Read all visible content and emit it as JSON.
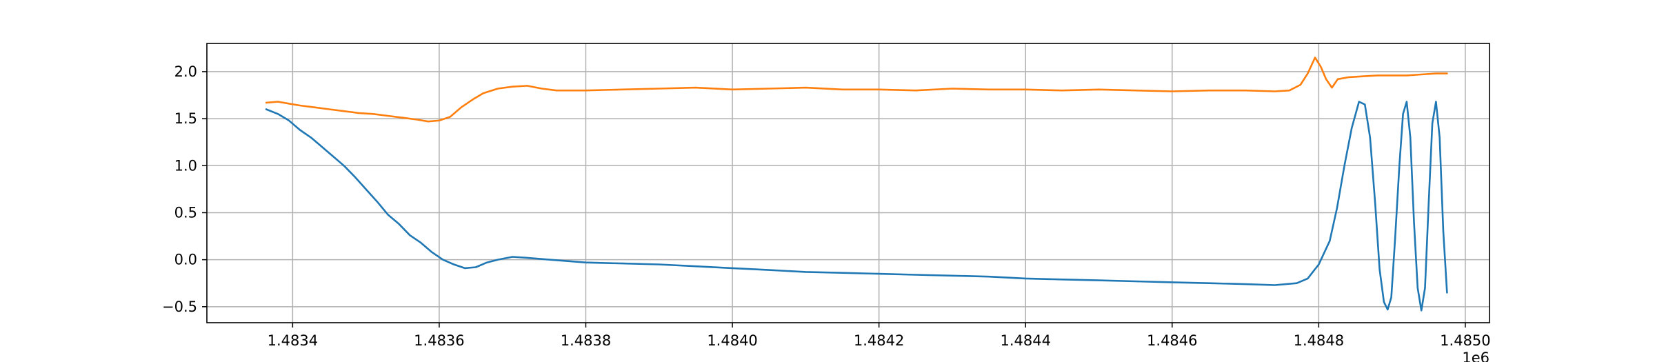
{
  "chart_data": {
    "type": "line",
    "title": "",
    "xlabel": "",
    "ylabel": "",
    "x_offset_label": "1e6",
    "xlim": [
      1483283,
      1485033
    ],
    "ylim": [
      -0.67,
      2.3
    ],
    "grid": true,
    "legend": "none",
    "x_ticks": [
      {
        "value": 1483400,
        "label": "1.4834"
      },
      {
        "value": 1483600,
        "label": "1.4836"
      },
      {
        "value": 1483800,
        "label": "1.4838"
      },
      {
        "value": 1484000,
        "label": "1.4840"
      },
      {
        "value": 1484200,
        "label": "1.4842"
      },
      {
        "value": 1484400,
        "label": "1.4844"
      },
      {
        "value": 1484600,
        "label": "1.4846"
      },
      {
        "value": 1484800,
        "label": "1.4848"
      },
      {
        "value": 1485000,
        "label": "1.4850"
      }
    ],
    "y_ticks": [
      {
        "value": -0.5,
        "label": "−0.5"
      },
      {
        "value": 0.0,
        "label": "0.0"
      },
      {
        "value": 0.5,
        "label": "0.5"
      },
      {
        "value": 1.0,
        "label": "1.0"
      },
      {
        "value": 1.5,
        "label": "1.5"
      },
      {
        "value": 2.0,
        "label": "2.0"
      }
    ],
    "series": [
      {
        "color": "#1f77b4",
        "points": [
          [
            1483364,
            1.6
          ],
          [
            1483380,
            1.55
          ],
          [
            1483395,
            1.48
          ],
          [
            1483410,
            1.38
          ],
          [
            1483425,
            1.3
          ],
          [
            1483440,
            1.2
          ],
          [
            1483455,
            1.1
          ],
          [
            1483470,
            1.0
          ],
          [
            1483485,
            0.88
          ],
          [
            1483500,
            0.75
          ],
          [
            1483515,
            0.62
          ],
          [
            1483530,
            0.48
          ],
          [
            1483545,
            0.38
          ],
          [
            1483560,
            0.26
          ],
          [
            1483575,
            0.18
          ],
          [
            1483590,
            0.08
          ],
          [
            1483605,
            0.0
          ],
          [
            1483620,
            -0.05
          ],
          [
            1483635,
            -0.09
          ],
          [
            1483650,
            -0.08
          ],
          [
            1483665,
            -0.03
          ],
          [
            1483680,
            0.0
          ],
          [
            1483700,
            0.03
          ],
          [
            1483720,
            0.02
          ],
          [
            1483750,
            0.0
          ],
          [
            1483800,
            -0.03
          ],
          [
            1483850,
            -0.04
          ],
          [
            1483900,
            -0.05
          ],
          [
            1483950,
            -0.07
          ],
          [
            1484000,
            -0.09
          ],
          [
            1484050,
            -0.11
          ],
          [
            1484100,
            -0.13
          ],
          [
            1484150,
            -0.14
          ],
          [
            1484200,
            -0.15
          ],
          [
            1484250,
            -0.16
          ],
          [
            1484300,
            -0.17
          ],
          [
            1484350,
            -0.18
          ],
          [
            1484400,
            -0.2
          ],
          [
            1484450,
            -0.21
          ],
          [
            1484500,
            -0.22
          ],
          [
            1484550,
            -0.23
          ],
          [
            1484600,
            -0.24
          ],
          [
            1484650,
            -0.25
          ],
          [
            1484700,
            -0.26
          ],
          [
            1484740,
            -0.27
          ],
          [
            1484770,
            -0.25
          ],
          [
            1484785,
            -0.2
          ],
          [
            1484800,
            -0.05
          ],
          [
            1484815,
            0.2
          ],
          [
            1484825,
            0.55
          ],
          [
            1484835,
            1.0
          ],
          [
            1484845,
            1.4
          ],
          [
            1484855,
            1.68
          ],
          [
            1484863,
            1.65
          ],
          [
            1484870,
            1.3
          ],
          [
            1484877,
            0.6
          ],
          [
            1484883,
            -0.1
          ],
          [
            1484889,
            -0.45
          ],
          [
            1484894,
            -0.53
          ],
          [
            1484899,
            -0.4
          ],
          [
            1484904,
            0.2
          ],
          [
            1484910,
            1.0
          ],
          [
            1484915,
            1.55
          ],
          [
            1484920,
            1.68
          ],
          [
            1484925,
            1.3
          ],
          [
            1484930,
            0.4
          ],
          [
            1484935,
            -0.3
          ],
          [
            1484940,
            -0.54
          ],
          [
            1484945,
            -0.3
          ],
          [
            1484950,
            0.6
          ],
          [
            1484955,
            1.45
          ],
          [
            1484960,
            1.68
          ],
          [
            1484965,
            1.3
          ],
          [
            1484970,
            0.3
          ],
          [
            1484975,
            -0.35
          ]
        ]
      },
      {
        "color": "#ff7f0e",
        "points": [
          [
            1483364,
            1.67
          ],
          [
            1483380,
            1.68
          ],
          [
            1483395,
            1.66
          ],
          [
            1483410,
            1.64
          ],
          [
            1483430,
            1.62
          ],
          [
            1483450,
            1.6
          ],
          [
            1483470,
            1.58
          ],
          [
            1483490,
            1.56
          ],
          [
            1483510,
            1.55
          ],
          [
            1483530,
            1.53
          ],
          [
            1483550,
            1.51
          ],
          [
            1483570,
            1.49
          ],
          [
            1483585,
            1.47
          ],
          [
            1483600,
            1.48
          ],
          [
            1483615,
            1.52
          ],
          [
            1483630,
            1.62
          ],
          [
            1483645,
            1.7
          ],
          [
            1483660,
            1.77
          ],
          [
            1483680,
            1.82
          ],
          [
            1483700,
            1.84
          ],
          [
            1483720,
            1.85
          ],
          [
            1483740,
            1.82
          ],
          [
            1483760,
            1.8
          ],
          [
            1483800,
            1.8
          ],
          [
            1483850,
            1.81
          ],
          [
            1483900,
            1.82
          ],
          [
            1483950,
            1.83
          ],
          [
            1484000,
            1.81
          ],
          [
            1484050,
            1.82
          ],
          [
            1484100,
            1.83
          ],
          [
            1484150,
            1.81
          ],
          [
            1484200,
            1.81
          ],
          [
            1484250,
            1.8
          ],
          [
            1484300,
            1.82
          ],
          [
            1484350,
            1.81
          ],
          [
            1484400,
            1.81
          ],
          [
            1484450,
            1.8
          ],
          [
            1484500,
            1.81
          ],
          [
            1484550,
            1.8
          ],
          [
            1484600,
            1.79
          ],
          [
            1484650,
            1.8
          ],
          [
            1484700,
            1.8
          ],
          [
            1484740,
            1.79
          ],
          [
            1484760,
            1.8
          ],
          [
            1484775,
            1.86
          ],
          [
            1484785,
            1.98
          ],
          [
            1484795,
            2.15
          ],
          [
            1484803,
            2.05
          ],
          [
            1484810,
            1.92
          ],
          [
            1484818,
            1.83
          ],
          [
            1484826,
            1.92
          ],
          [
            1484840,
            1.94
          ],
          [
            1484860,
            1.95
          ],
          [
            1484880,
            1.96
          ],
          [
            1484900,
            1.96
          ],
          [
            1484920,
            1.96
          ],
          [
            1484940,
            1.97
          ],
          [
            1484960,
            1.98
          ],
          [
            1484975,
            1.98
          ]
        ]
      }
    ]
  }
}
